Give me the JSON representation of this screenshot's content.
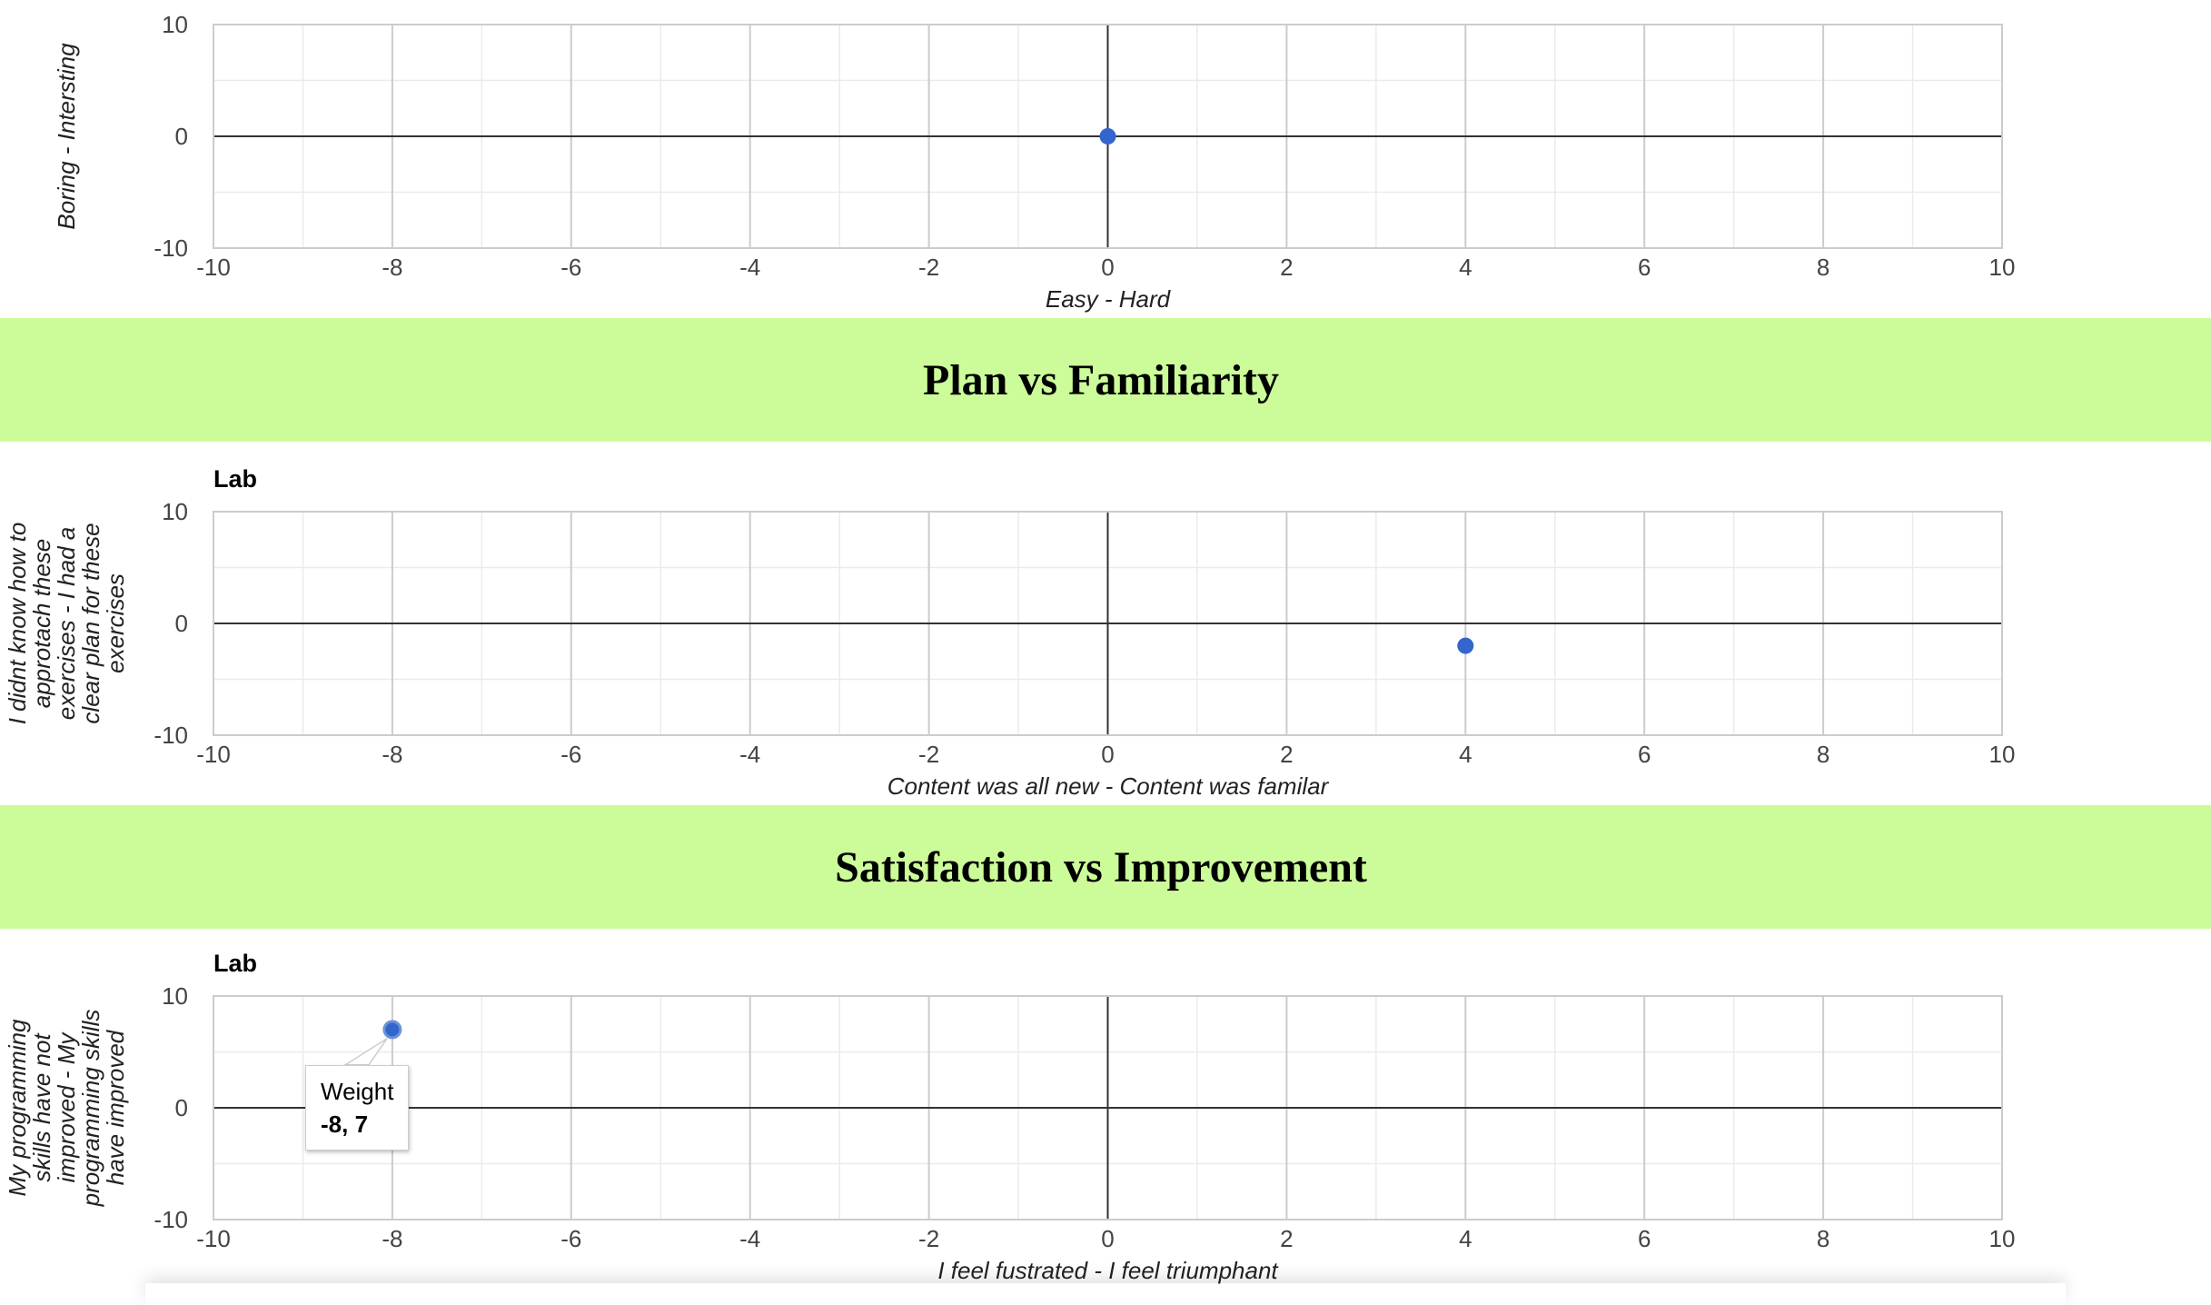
{
  "sections": [
    {
      "heading": "Plan vs Familiarity"
    },
    {
      "heading": "Satisfaction vs Improvement"
    }
  ],
  "chart_data": [
    {
      "type": "scatter",
      "title": "",
      "xlabel": "Easy - Hard",
      "ylabel": "Boring - Intersting",
      "xlim": [
        -10,
        10
      ],
      "ylim": [
        -10,
        10
      ],
      "x_ticks": [
        -10,
        -8,
        -6,
        -4,
        -2,
        0,
        2,
        4,
        6,
        8,
        10
      ],
      "y_ticks": [
        10,
        0,
        -10
      ],
      "grid": true,
      "point_color": "#3366cc",
      "points": [
        {
          "x": 0,
          "y": 0
        }
      ]
    },
    {
      "type": "scatter",
      "title": "Lab",
      "xlabel": "Content was all new - Content was familar",
      "ylabel": "I didnt know how to approtach these exercises - I had a clear plan for these exercises",
      "xlim": [
        -10,
        10
      ],
      "ylim": [
        -10,
        10
      ],
      "x_ticks": [
        -10,
        -8,
        -6,
        -4,
        -2,
        0,
        2,
        4,
        6,
        8,
        10
      ],
      "y_ticks": [
        10,
        0,
        -10
      ],
      "grid": true,
      "point_color": "#3366cc",
      "points": [
        {
          "x": 4,
          "y": -2
        }
      ]
    },
    {
      "type": "scatter",
      "title": "Lab",
      "xlabel": "I feel fustrated - I feel triumphant",
      "ylabel": "My programming skills have not improved - My programming skills have improved",
      "xlim": [
        -10,
        10
      ],
      "ylim": [
        -10,
        10
      ],
      "x_ticks": [
        -10,
        -8,
        -6,
        -4,
        -2,
        0,
        2,
        4,
        6,
        8,
        10
      ],
      "y_ticks": [
        10,
        0,
        -10
      ],
      "grid": true,
      "point_color": "#3366cc",
      "points": [
        {
          "x": -8,
          "y": 7
        }
      ],
      "tooltip": {
        "series": "Weight",
        "value": "-8, 7"
      }
    }
  ]
}
